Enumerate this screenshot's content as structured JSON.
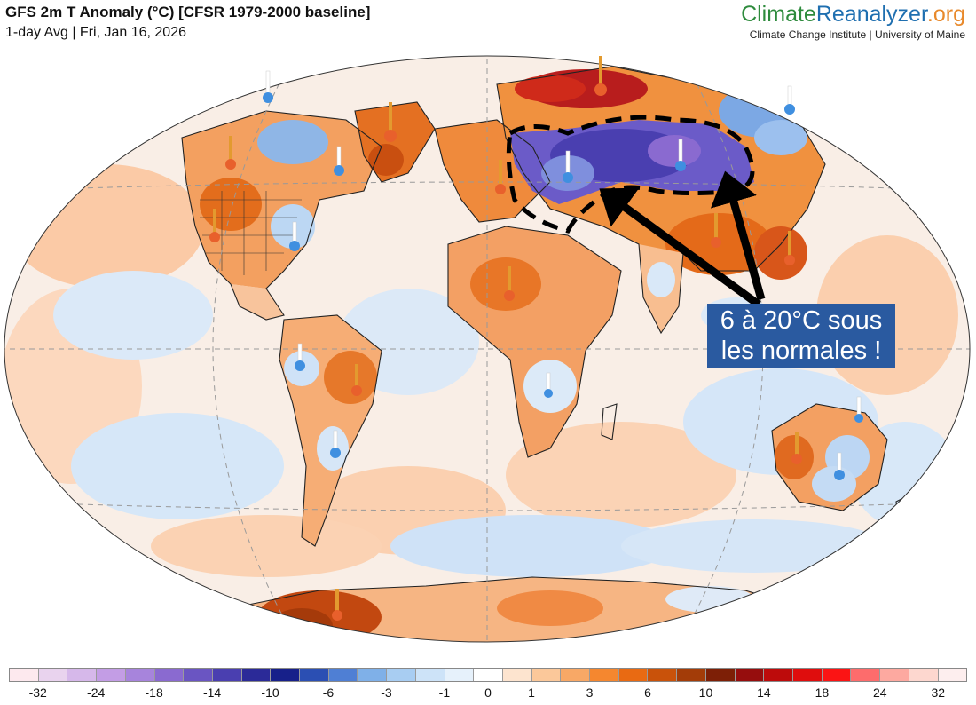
{
  "header": {
    "title": "GFS 2m T Anomaly (°C) [CFSR 1979-2000 baseline]",
    "subtitle": "1-day Avg | Fri, Jan 16, 2026"
  },
  "brand": {
    "part1": "Climate",
    "part2": "Reanalyzer",
    "part3": ".org",
    "subline": "Climate Change Institute | University of Maine",
    "colors": {
      "part1": "#2e8b3d",
      "part2": "#1f6fb0",
      "part3": "#e8892b"
    }
  },
  "annotation": {
    "line1": "6 à 20°C sous",
    "line2": "les normales !",
    "background": "#2a5aa0"
  },
  "legend": {
    "colors": [
      "#fde9ee",
      "#e9d3ee",
      "#d6b8ea",
      "#c39de5",
      "#a784dc",
      "#8a6ad0",
      "#6a55c2",
      "#4a3fb0",
      "#2b2a98",
      "#17208a",
      "#2b4fb3",
      "#4f7fd4",
      "#7fb0e8",
      "#a8cdf2",
      "#cde3f8",
      "#e6f1fb",
      "#ffffff",
      "#fde4cf",
      "#fbc89a",
      "#f8a866",
      "#f5872f",
      "#e96a12",
      "#c9520a",
      "#a33c08",
      "#7d1f06",
      "#960d0d",
      "#bd0b0b",
      "#df0d0d",
      "#fb1414",
      "#fd6c6c",
      "#fda9a0",
      "#fdd7cf",
      "#fdeeee"
    ],
    "labels": [
      {
        "text": "-32",
        "pos": 1
      },
      {
        "text": "-24",
        "pos": 3
      },
      {
        "text": "-18",
        "pos": 5
      },
      {
        "text": "-14",
        "pos": 7
      },
      {
        "text": "-10",
        "pos": 9
      },
      {
        "text": "-6",
        "pos": 11
      },
      {
        "text": "-3",
        "pos": 13
      },
      {
        "text": "-1",
        "pos": 15
      },
      {
        "text": "0",
        "pos": 16.5
      },
      {
        "text": "1",
        "pos": 18
      },
      {
        "text": "3",
        "pos": 20
      },
      {
        "text": "6",
        "pos": 22
      },
      {
        "text": "10",
        "pos": 24
      },
      {
        "text": "14",
        "pos": 26
      },
      {
        "text": "18",
        "pos": 28
      },
      {
        "text": "24",
        "pos": 30
      },
      {
        "text": "32",
        "pos": 32
      }
    ]
  },
  "map": {
    "projection": "Winkel tripel",
    "palette": {
      "ocean_warm": "#fbd2b4",
      "ocean_cool": "#cfe3f7",
      "land_warm": "#f2913e",
      "land_hot": "#c2410c",
      "extreme_hot": "#b91c1c",
      "cold": "#5b4bc2",
      "very_cold": "#3b2f9e"
    }
  }
}
